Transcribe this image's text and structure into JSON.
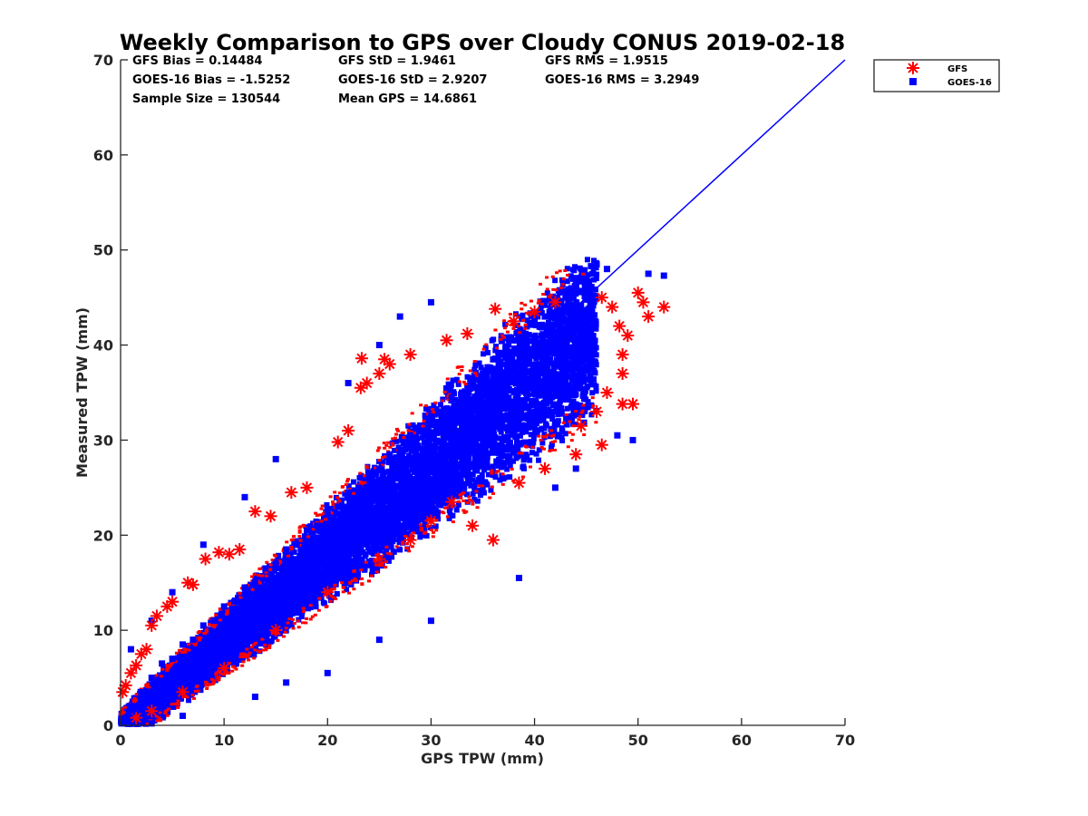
{
  "chart_data": {
    "type": "scatter",
    "title": "Weekly Comparison to GPS over Cloudy CONUS 2019-02-18",
    "xlabel": "GPS TPW (mm)",
    "ylabel": "Measured TPW (mm)",
    "xlim": [
      0,
      70
    ],
    "ylim": [
      0,
      70
    ],
    "xticks": [
      "0",
      "10",
      "20",
      "30",
      "40",
      "50",
      "60",
      "70"
    ],
    "yticks": [
      "0",
      "10",
      "20",
      "30",
      "40",
      "50",
      "60",
      "70"
    ],
    "grid": false,
    "legend_position": "outside-top-right",
    "stats": [
      [
        "GFS Bias = 0.14484",
        "GFS StD = 1.9461",
        "GFS RMS = 1.9515"
      ],
      [
        "GOES-16 Bias = -1.5252",
        "GOES-16 StD = 2.9207",
        "GOES-16 RMS = 3.2949"
      ],
      [
        "Sample Size = 130544",
        "Mean GPS = 14.6861",
        ""
      ]
    ],
    "reference_line": {
      "x": [
        0,
        70
      ],
      "y": [
        0,
        70
      ],
      "color": "#0000ff"
    },
    "series": [
      {
        "name": "GFS",
        "marker": "asterisk",
        "color": "#ff0000",
        "points": [
          [
            0.2,
            3.5
          ],
          [
            0.5,
            4.2
          ],
          [
            1.0,
            5.5
          ],
          [
            1.5,
            6.3
          ],
          [
            2.0,
            7.5
          ],
          [
            2.5,
            8.0
          ],
          [
            3.0,
            10.5
          ],
          [
            3.5,
            11.5
          ],
          [
            4.5,
            12.5
          ],
          [
            5.0,
            13.0
          ],
          [
            6.5,
            15.0
          ],
          [
            7.0,
            14.8
          ],
          [
            8.2,
            17.5
          ],
          [
            9.5,
            18.2
          ],
          [
            10.5,
            18.0
          ],
          [
            11.5,
            18.5
          ],
          [
            13.0,
            22.5
          ],
          [
            14.5,
            22.0
          ],
          [
            16.5,
            24.5
          ],
          [
            18.0,
            25.0
          ],
          [
            21.0,
            29.8
          ],
          [
            22.0,
            31.0
          ],
          [
            23.2,
            35.5
          ],
          [
            23.8,
            36.0
          ],
          [
            23.3,
            38.6
          ],
          [
            25.0,
            37.0
          ],
          [
            25.5,
            38.5
          ],
          [
            26.0,
            38.0
          ],
          [
            28.0,
            39.0
          ],
          [
            31.5,
            40.5
          ],
          [
            33.5,
            41.2
          ],
          [
            36.2,
            43.8
          ],
          [
            38.0,
            42.5
          ],
          [
            40.0,
            43.5
          ],
          [
            42.0,
            44.5
          ],
          [
            46.5,
            45.0
          ],
          [
            47.5,
            44.0
          ],
          [
            48.2,
            42.0
          ],
          [
            49.0,
            41.0
          ],
          [
            48.5,
            39.0
          ],
          [
            48.5,
            37.0
          ],
          [
            47.0,
            35.0
          ],
          [
            48.5,
            33.8
          ],
          [
            49.5,
            33.8
          ],
          [
            46.0,
            33.0
          ],
          [
            44.5,
            31.5
          ],
          [
            46.5,
            29.5
          ],
          [
            44.0,
            28.5
          ],
          [
            41.0,
            27.0
          ],
          [
            38.5,
            25.5
          ],
          [
            36.0,
            19.5
          ],
          [
            34.0,
            21.0
          ],
          [
            32.0,
            23.5
          ],
          [
            30.0,
            21.5
          ],
          [
            28.0,
            19.5
          ],
          [
            25.0,
            17.5
          ],
          [
            20.0,
            14.0
          ],
          [
            15.0,
            10.0
          ],
          [
            10.0,
            6.0
          ],
          [
            6.0,
            3.5
          ],
          [
            3.0,
            1.5
          ],
          [
            1.5,
            0.8
          ],
          [
            50.5,
            44.5
          ],
          [
            51.0,
            43.0
          ],
          [
            52.5,
            44.0
          ],
          [
            50.0,
            45.5
          ]
        ]
      },
      {
        "name": "GOES-16",
        "marker": "square",
        "color": "#0000ff",
        "points": [
          [
            0.5,
            0.5
          ],
          [
            1.0,
            2.0
          ],
          [
            2.0,
            3.5
          ],
          [
            3.0,
            5.0
          ],
          [
            4.0,
            6.5
          ],
          [
            5.0,
            7.0
          ],
          [
            6.0,
            8.5
          ],
          [
            7.0,
            9.0
          ],
          [
            8.0,
            10.5
          ],
          [
            9.0,
            11.0
          ],
          [
            10.0,
            12.5
          ],
          [
            11.0,
            13.0
          ],
          [
            12.0,
            14.5
          ],
          [
            13.0,
            15.0
          ],
          [
            14.0,
            16.5
          ],
          [
            15.0,
            17.0
          ],
          [
            16.0,
            18.5
          ],
          [
            17.0,
            19.0
          ],
          [
            18.0,
            20.5
          ],
          [
            19.0,
            21.0
          ],
          [
            20.0,
            22.5
          ],
          [
            21.0,
            23.0
          ],
          [
            22.0,
            24.5
          ],
          [
            23.0,
            25.0
          ],
          [
            24.0,
            26.5
          ],
          [
            25.0,
            27.0
          ],
          [
            26.0,
            28.5
          ],
          [
            27.0,
            29.0
          ],
          [
            28.0,
            30.5
          ],
          [
            29.0,
            31.0
          ],
          [
            30.0,
            32.5
          ],
          [
            31.0,
            33.0
          ],
          [
            32.0,
            34.5
          ],
          [
            33.0,
            35.0
          ],
          [
            34.0,
            36.5
          ],
          [
            35.0,
            37.0
          ],
          [
            36.0,
            38.5
          ],
          [
            37.0,
            39.0
          ],
          [
            38.0,
            40.5
          ],
          [
            39.0,
            41.0
          ],
          [
            40.0,
            42.5
          ],
          [
            41.0,
            43.0
          ],
          [
            42.0,
            44.5
          ],
          [
            43.0,
            45.0
          ],
          [
            44.0,
            46.5
          ],
          [
            45.0,
            47.0
          ],
          [
            46.0,
            48.5
          ],
          [
            47.0,
            48.0
          ],
          [
            51.0,
            47.5
          ],
          [
            52.5,
            47.3
          ],
          [
            48.0,
            30.5
          ],
          [
            49.5,
            30.0
          ],
          [
            44.0,
            27.0
          ],
          [
            42.0,
            25.0
          ],
          [
            30.0,
            44.5
          ],
          [
            27.0,
            43.0
          ],
          [
            25.0,
            40.0
          ],
          [
            22.0,
            36.0
          ],
          [
            15.0,
            28.0
          ],
          [
            12.0,
            24.0
          ],
          [
            8.0,
            19.0
          ],
          [
            5.0,
            14.0
          ],
          [
            3.0,
            11.0
          ],
          [
            1.0,
            8.0
          ],
          [
            38.5,
            15.5
          ],
          [
            30.0,
            11.0
          ],
          [
            25.0,
            9.0
          ],
          [
            20.0,
            5.5
          ],
          [
            16.0,
            4.5
          ],
          [
            13.0,
            3.0
          ],
          [
            6.0,
            1.0
          ],
          [
            3.0,
            0.2
          ]
        ]
      }
    ]
  }
}
